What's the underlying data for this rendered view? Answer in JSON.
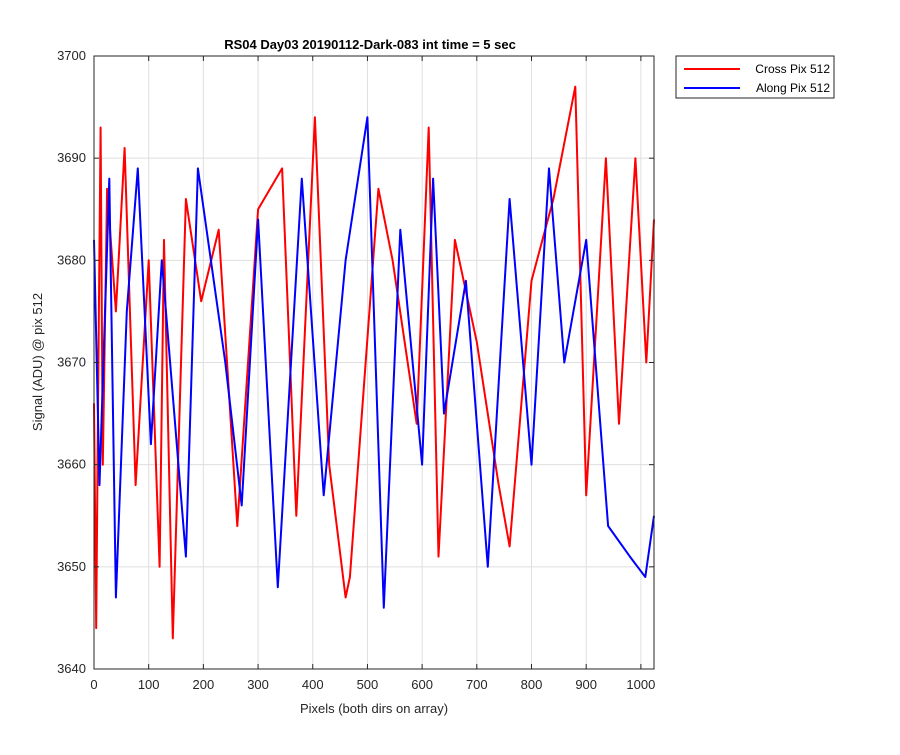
{
  "chart_data": {
    "type": "line",
    "title": "RS04 Day03 20190112-Dark-083 int time = 5 sec",
    "xlabel": "Pixels (both dirs on array)",
    "ylabel": "Signal (ADU) @ pix 512",
    "xlim": [
      0,
      1024
    ],
    "ylim": [
      3640,
      3700
    ],
    "xticks": [
      0,
      100,
      200,
      300,
      400,
      500,
      600,
      700,
      800,
      900,
      1000
    ],
    "yticks": [
      3640,
      3650,
      3660,
      3670,
      3680,
      3690,
      3700
    ],
    "grid": true,
    "legend_position": "top-right outside",
    "series": [
      {
        "name": "Cross Pix 512",
        "color": "#ff0000",
        "x": [
          0,
          4,
          8,
          12,
          16,
          24,
          40,
          56,
          76,
          100,
          120,
          128,
          144,
          168,
          196,
          228,
          262,
          300,
          344,
          370,
          404,
          430,
          460,
          468,
          520,
          546,
          590,
          612,
          630,
          660,
          700,
          740,
          760,
          800,
          840,
          880,
          900,
          936,
          960,
          990,
          1010,
          1024
        ],
        "values": [
          3666,
          3644,
          3670,
          3693,
          3660,
          3687,
          3675,
          3691,
          3658,
          3680,
          3650,
          3682,
          3643,
          3686,
          3676,
          3683,
          3654,
          3685,
          3689,
          3655,
          3694,
          3660,
          3647,
          3649,
          3687,
          3680,
          3664,
          3693,
          3651,
          3682,
          3672,
          3658,
          3652,
          3678,
          3686,
          3697,
          3657,
          3690,
          3664,
          3690,
          3670,
          3684
        ]
      },
      {
        "name": "Along Pix 512",
        "color": "#0000ff",
        "x": [
          0,
          10,
          28,
          40,
          60,
          80,
          104,
          124,
          168,
          190,
          240,
          270,
          300,
          336,
          380,
          420,
          460,
          500,
          530,
          560,
          600,
          620,
          640,
          680,
          720,
          760,
          800,
          832,
          860,
          900,
          940,
          980,
          1008,
          1024
        ],
        "values": [
          3682,
          3658,
          3688,
          3647,
          3675,
          3689,
          3662,
          3680,
          3651,
          3689,
          3670,
          3656,
          3684,
          3648,
          3688,
          3657,
          3680,
          3694,
          3646,
          3683,
          3660,
          3688,
          3665,
          3678,
          3650,
          3686,
          3660,
          3689,
          3670,
          3682,
          3654,
          3651,
          3649,
          3655
        ]
      }
    ]
  }
}
